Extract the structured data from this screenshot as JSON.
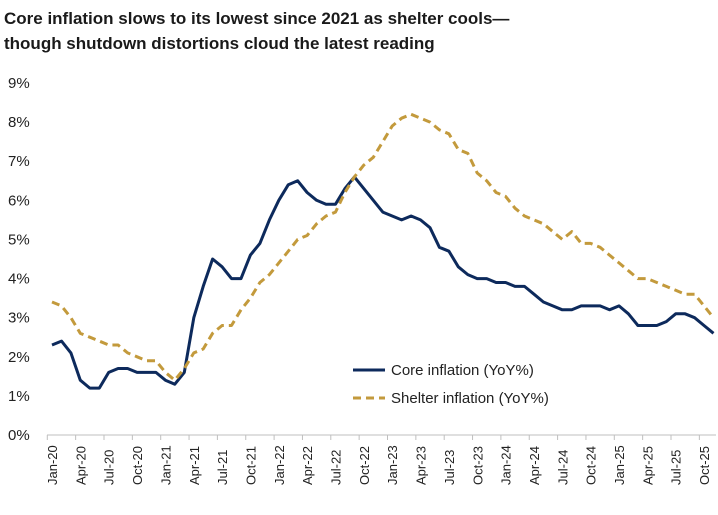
{
  "chart_data": {
    "type": "line",
    "title": "Core inflation slows to its lowest since 2021 as shelter cools—though shutdown distortions cloud the latest reading",
    "title_lines": [
      "Core inflation slows to its lowest since 2021 as shelter cools—",
      "though shutdown distortions cloud the latest reading"
    ],
    "xlabel": "",
    "ylabel": "",
    "ylim": [
      0,
      9
    ],
    "y_ticks": [
      "0%",
      "1%",
      "2%",
      "3%",
      "4%",
      "5%",
      "6%",
      "7%",
      "8%",
      "9%"
    ],
    "x_tick_labels": [
      "Jan-20",
      "Apr-20",
      "Jul-20",
      "Oct-20",
      "Jan-21",
      "Apr-21",
      "Jul-21",
      "Oct-21",
      "Jan-22",
      "Apr-22",
      "Jul-22",
      "Oct-22",
      "Jan-23",
      "Apr-23",
      "Jul-23",
      "Oct-23",
      "Jan-24",
      "Apr-24",
      "Jul-24",
      "Oct-24",
      "Jan-25",
      "Apr-25",
      "Jul-25",
      "Oct-25"
    ],
    "x_start": "Jan-20",
    "x_end": "Nov-25",
    "grid": false,
    "legend_position": "bottom-right",
    "series": [
      {
        "name": "Core inflation (YoY%)",
        "color": "#0d2a5c",
        "style": "solid",
        "values": [
          2.3,
          2.4,
          2.1,
          1.4,
          1.2,
          1.2,
          1.6,
          1.7,
          1.7,
          1.6,
          1.6,
          1.6,
          1.4,
          1.3,
          1.6,
          3.0,
          3.8,
          4.5,
          4.3,
          4.0,
          4.0,
          4.6,
          4.9,
          5.5,
          6.0,
          6.4,
          6.5,
          6.2,
          6.0,
          5.9,
          5.9,
          6.3,
          6.6,
          6.3,
          6.0,
          5.7,
          5.6,
          5.5,
          5.6,
          5.5,
          5.3,
          4.8,
          4.7,
          4.3,
          4.1,
          4.0,
          4.0,
          3.9,
          3.9,
          3.8,
          3.8,
          3.6,
          3.4,
          3.3,
          3.2,
          3.2,
          3.3,
          3.3,
          3.3,
          3.2,
          3.3,
          3.1,
          2.8,
          2.8,
          2.8,
          2.9,
          3.1,
          3.1,
          3.0,
          2.8,
          2.6
        ]
      },
      {
        "name": "Shelter inflation (YoY%)",
        "color": "#c39a3c",
        "style": "dashed",
        "values": [
          3.4,
          3.3,
          3.0,
          2.6,
          2.5,
          2.4,
          2.3,
          2.3,
          2.1,
          2.0,
          1.9,
          1.9,
          1.6,
          1.4,
          1.7,
          2.1,
          2.2,
          2.6,
          2.8,
          2.8,
          3.2,
          3.5,
          3.9,
          4.1,
          4.4,
          4.7,
          5.0,
          5.1,
          5.4,
          5.6,
          5.7,
          6.2,
          6.6,
          6.9,
          7.1,
          7.5,
          7.9,
          8.1,
          8.2,
          8.1,
          8.0,
          7.8,
          7.7,
          7.3,
          7.2,
          6.7,
          6.5,
          6.2,
          6.1,
          5.8,
          5.6,
          5.5,
          5.4,
          5.2,
          5.0,
          5.2,
          4.9,
          4.9,
          4.8,
          4.6,
          4.4,
          4.2,
          4.0,
          4.0,
          3.9,
          3.8,
          3.7,
          3.6,
          3.6,
          3.3,
          3.0
        ]
      }
    ]
  }
}
